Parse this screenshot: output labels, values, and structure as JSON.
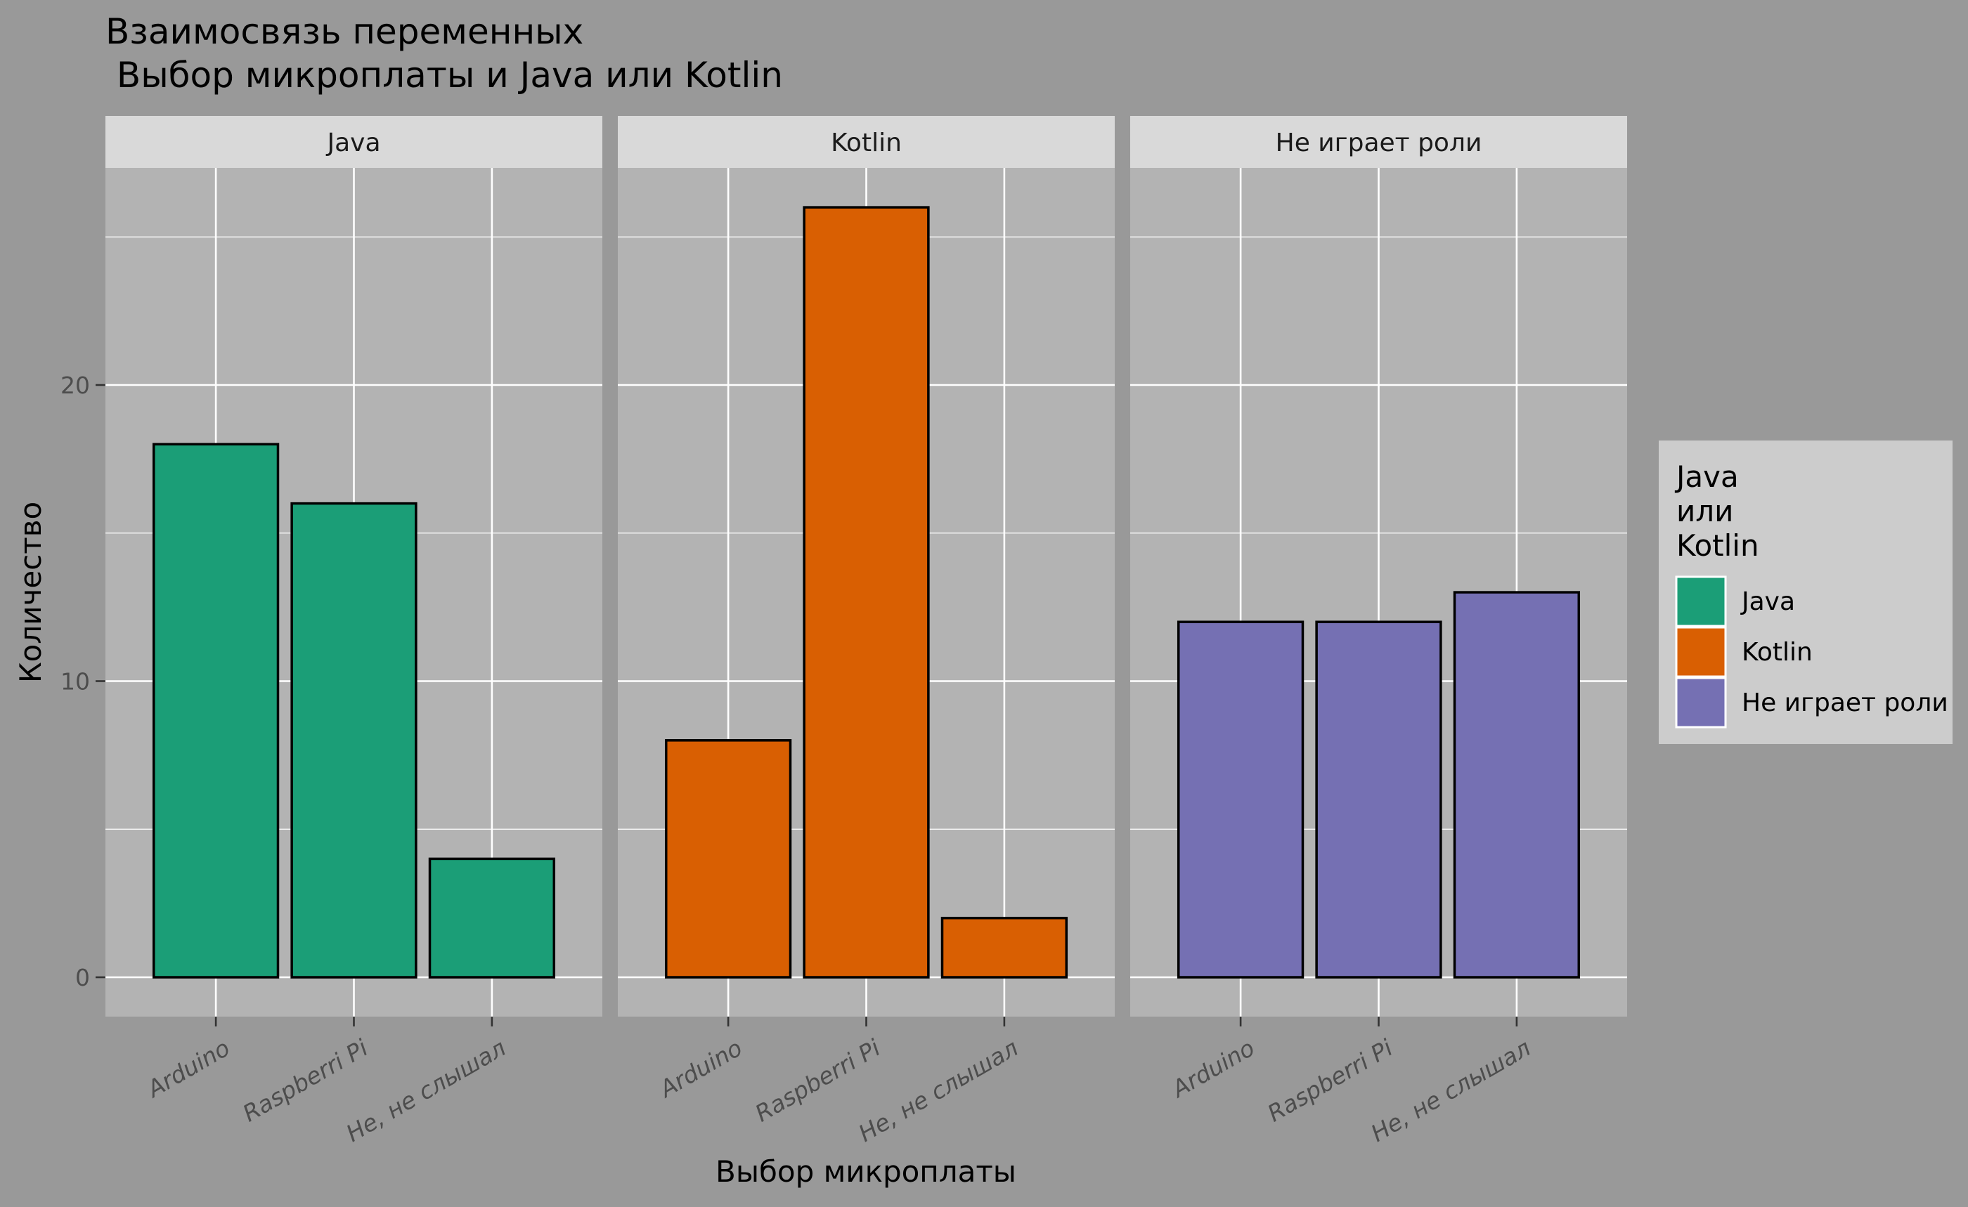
{
  "chart_data": {
    "type": "bar",
    "title_lines": [
      "Взаимосвязь переменных",
      " Выбор микроплаты и Java или Kotlin"
    ],
    "xlabel": "Выбор микроплаты",
    "ylabel": "Количество",
    "categories": [
      "Arduino",
      "Raspberri Pi",
      "Не, не слышал"
    ],
    "facets": [
      "Java",
      "Kotlin",
      "Не играет роли"
    ],
    "series": [
      {
        "name": "Java",
        "values": [
          18,
          16,
          4
        ]
      },
      {
        "name": "Kotlin",
        "values": [
          8,
          26,
          2
        ]
      },
      {
        "name": "Не играет роли",
        "values": [
          12,
          12,
          13
        ]
      }
    ],
    "ylim": [
      0,
      27.3
    ],
    "y_ticks": [
      0,
      10,
      20
    ],
    "grid": true,
    "legend": {
      "title_lines": [
        "Java",
        "или",
        "Kotlin"
      ],
      "position": "right",
      "entries": [
        "Java",
        "Kotlin",
        "Не играет роли"
      ]
    },
    "colors": {
      "Java": "#1b9e77",
      "Kotlin": "#d95f02",
      "Не играет роли": "#7570b3",
      "page_background": "#999999",
      "panel_background": "#b3b3b3",
      "strip_background": "#d9d9d9",
      "legend_background": "#cccccc",
      "grid": "#ffffff"
    }
  }
}
